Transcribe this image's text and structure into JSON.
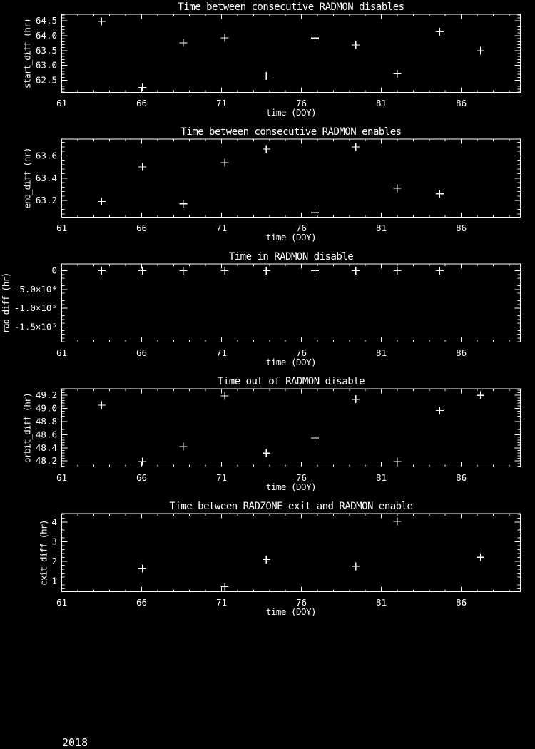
{
  "page": {
    "background": "#000000",
    "foreground": "#ffffff",
    "footer_year": "2018"
  },
  "chart_data": [
    {
      "type": "scatter",
      "marker": "plus",
      "title": "Time between consecutive RADMON disables",
      "xlabel": "time (DOY)",
      "ylabel": "start_diff (hr)",
      "xlim": [
        61,
        89.7
      ],
      "ylim": [
        62.09,
        64.72
      ],
      "xticks": [
        61,
        66,
        71,
        76,
        81,
        86
      ],
      "xtick_labels": [
        "61",
        "66",
        "71",
        "76",
        "81",
        "86"
      ],
      "yticks": [
        62.5,
        63.0,
        63.5,
        64.0,
        64.5
      ],
      "ytick_labels": [
        "62.5",
        "63.0",
        "63.5",
        "64.0",
        "64.5"
      ],
      "x_minor": 1,
      "y_minor": 0.1,
      "grid": false,
      "x": [
        63.5,
        66.05,
        68.6,
        71.2,
        73.8,
        76.85,
        79.4,
        82.0,
        84.65,
        87.2
      ],
      "y": [
        64.48,
        62.26,
        63.76,
        63.93,
        62.64,
        63.92,
        63.69,
        62.72,
        64.13,
        63.49
      ]
    },
    {
      "type": "scatter",
      "marker": "plus",
      "title": "Time between consecutive RADMON enables",
      "xlabel": "time (DOY)",
      "ylabel": "end_diff (hr)",
      "xlim": [
        61,
        89.7
      ],
      "ylim": [
        63.05,
        63.75
      ],
      "xticks": [
        61,
        66,
        71,
        76,
        81,
        86
      ],
      "xtick_labels": [
        "61",
        "66",
        "71",
        "76",
        "81",
        "86"
      ],
      "yticks": [
        63.2,
        63.4,
        63.6
      ],
      "ytick_labels": [
        "63.2",
        "63.4",
        "63.6"
      ],
      "x_minor": 1,
      "y_minor": 0.04,
      "grid": false,
      "x": [
        63.5,
        66.05,
        68.6,
        71.2,
        73.8,
        76.85,
        79.4,
        82.0,
        84.65
      ],
      "y": [
        63.19,
        63.5,
        63.17,
        63.54,
        63.66,
        63.09,
        63.68,
        63.31,
        63.26
      ]
    },
    {
      "type": "scatter",
      "marker": "plus",
      "title": "Time in RADMON disable",
      "xlabel": "time (DOY)",
      "ylabel": "rad_diff (hr)",
      "xlim": [
        61,
        89.7
      ],
      "ylim": [
        -190500,
        18300
      ],
      "xticks": [
        61,
        66,
        71,
        76,
        81,
        86
      ],
      "xtick_labels": [
        "61",
        "66",
        "71",
        "76",
        "81",
        "86"
      ],
      "yticks": [
        0,
        -50000,
        -100000,
        -150000
      ],
      "ytick_labels": [
        "0",
        "-5.0×10⁴",
        "-1.0×10⁵",
        "-1.5×10⁵"
      ],
      "x_minor": 1,
      "y_minor": 10000,
      "grid": false,
      "x": [
        63.5,
        66.05,
        68.6,
        71.2,
        73.8,
        76.85,
        79.4,
        82.0,
        84.65
      ],
      "y": [
        0,
        0,
        0,
        0,
        0,
        0,
        0,
        0,
        0
      ]
    },
    {
      "type": "scatter",
      "marker": "plus",
      "title": "Time out of RADMON disable",
      "xlabel": "time (DOY)",
      "ylabel": "orbit_diff (hr)",
      "xlim": [
        61,
        89.7
      ],
      "ylim": [
        48.11,
        49.3
      ],
      "xticks": [
        61,
        66,
        71,
        76,
        81,
        86
      ],
      "xtick_labels": [
        "61",
        "66",
        "71",
        "76",
        "81",
        "86"
      ],
      "yticks": [
        48.2,
        48.4,
        48.6,
        48.8,
        49.0,
        49.2
      ],
      "ytick_labels": [
        "48.2",
        "48.4",
        "48.6",
        "48.8",
        "49.0",
        "49.2"
      ],
      "x_minor": 1,
      "y_minor": 0.04,
      "grid": false,
      "x": [
        63.5,
        66.05,
        68.6,
        71.2,
        73.8,
        76.85,
        79.4,
        82.0,
        84.65,
        87.2
      ],
      "y": [
        49.05,
        48.19,
        48.42,
        49.19,
        48.32,
        48.55,
        49.14,
        48.19,
        48.97,
        49.2
      ]
    },
    {
      "type": "scatter",
      "marker": "plus",
      "title": "Time between RADZONE exit and RADMON enable",
      "xlabel": "time (DOY)",
      "ylabel": "exit_diff (hr)",
      "xlim": [
        61,
        89.7
      ],
      "ylim": [
        0.45,
        4.44
      ],
      "xticks": [
        61,
        66,
        71,
        76,
        81,
        86
      ],
      "xtick_labels": [
        "61",
        "66",
        "71",
        "76",
        "81",
        "86"
      ],
      "yticks": [
        1,
        2,
        3,
        4
      ],
      "ytick_labels": [
        "1",
        "2",
        "3",
        "4"
      ],
      "x_minor": 1,
      "y_minor": 0.2,
      "grid": false,
      "x": [
        66.05,
        71.2,
        73.8,
        79.4,
        82.0,
        87.2
      ],
      "y": [
        1.64,
        0.71,
        2.09,
        1.75,
        4.04,
        2.21
      ]
    }
  ]
}
